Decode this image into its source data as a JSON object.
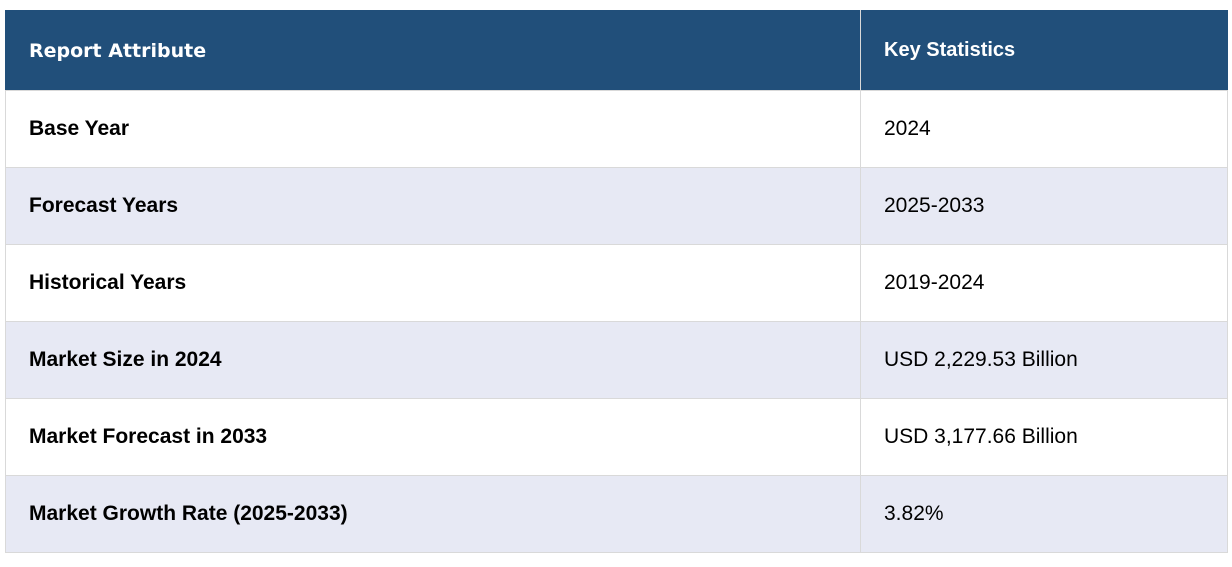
{
  "table": {
    "headers": [
      "Report Attribute",
      "Key Statistics"
    ],
    "rows": [
      [
        "Base Year",
        "2024"
      ],
      [
        "Forecast Years",
        "2025-2033"
      ],
      [
        "Historical Years",
        "2019-2024"
      ],
      [
        "Market Size in 2024",
        "USD 2,229.53 Billion"
      ],
      [
        "Market Forecast in 2033",
        "USD 3,177.66 Billion"
      ],
      [
        "Market Growth Rate (2025-2033)",
        "3.82%"
      ]
    ]
  },
  "colors": {
    "header_bg": "#214f7a",
    "header_text": "#ffffff",
    "stripe_bg": "#e7e9f4",
    "border": "#d9d9d9"
  }
}
